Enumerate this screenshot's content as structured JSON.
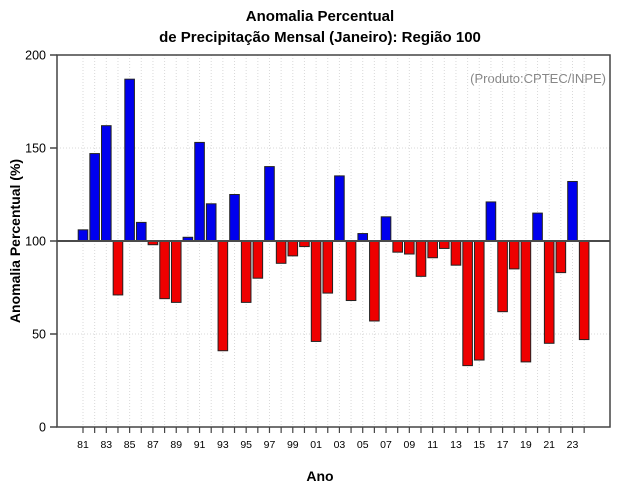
{
  "title": {
    "line1": "Anomalia Percentual",
    "line2": "de Precipitação Mensal (Janeiro): Região 100"
  },
  "annotation": "(Produto:CPTEC/INPE)",
  "colors": {
    "positive_bar": "#0000EE",
    "negative_bar": "#EE0000",
    "bar_border": "#222222",
    "axis_box": "#444444",
    "baseline": "#4a4a4a",
    "grid": "#d9d9d9",
    "annotation_text": "#878787",
    "background": "#ffffff",
    "text": "#000000"
  },
  "chart_data": {
    "type": "bar",
    "title": "Anomalia Percentual de Precipitação Mensal (Janeiro): Região 100",
    "xlabel": "Ano",
    "ylabel": "Anomalia Percentual (%)",
    "ylim": [
      0,
      200
    ],
    "yticks": [
      0,
      50,
      100,
      150,
      200
    ],
    "baseline": 100,
    "grid": "dotted",
    "legend_position": "none",
    "categories": [
      "81",
      "82",
      "83",
      "84",
      "85",
      "86",
      "87",
      "88",
      "89",
      "90",
      "91",
      "92",
      "93",
      "94",
      "95",
      "96",
      "97",
      "98",
      "99",
      "00",
      "01",
      "02",
      "03",
      "04",
      "05",
      "06",
      "07",
      "08",
      "09",
      "10",
      "11",
      "12",
      "13",
      "14",
      "15",
      "16",
      "17",
      "18",
      "19",
      "20",
      "21",
      "22",
      "23",
      "24"
    ],
    "labeled_ticks": [
      "81",
      "83",
      "85",
      "87",
      "89",
      "91",
      "93",
      "95",
      "97",
      "99",
      "01",
      "03",
      "05",
      "07",
      "09",
      "11",
      "13",
      "15",
      "17",
      "19",
      "21",
      "23"
    ],
    "values": [
      106,
      147,
      162,
      71,
      187,
      110,
      98,
      69,
      67,
      102,
      153,
      120,
      41,
      125,
      67,
      80,
      140,
      88,
      92,
      97,
      46,
      72,
      135,
      68,
      104,
      57,
      113,
      94,
      93,
      81,
      91,
      96,
      87,
      33,
      36,
      121,
      62,
      85,
      35,
      115,
      45,
      83,
      132,
      47
    ]
  }
}
